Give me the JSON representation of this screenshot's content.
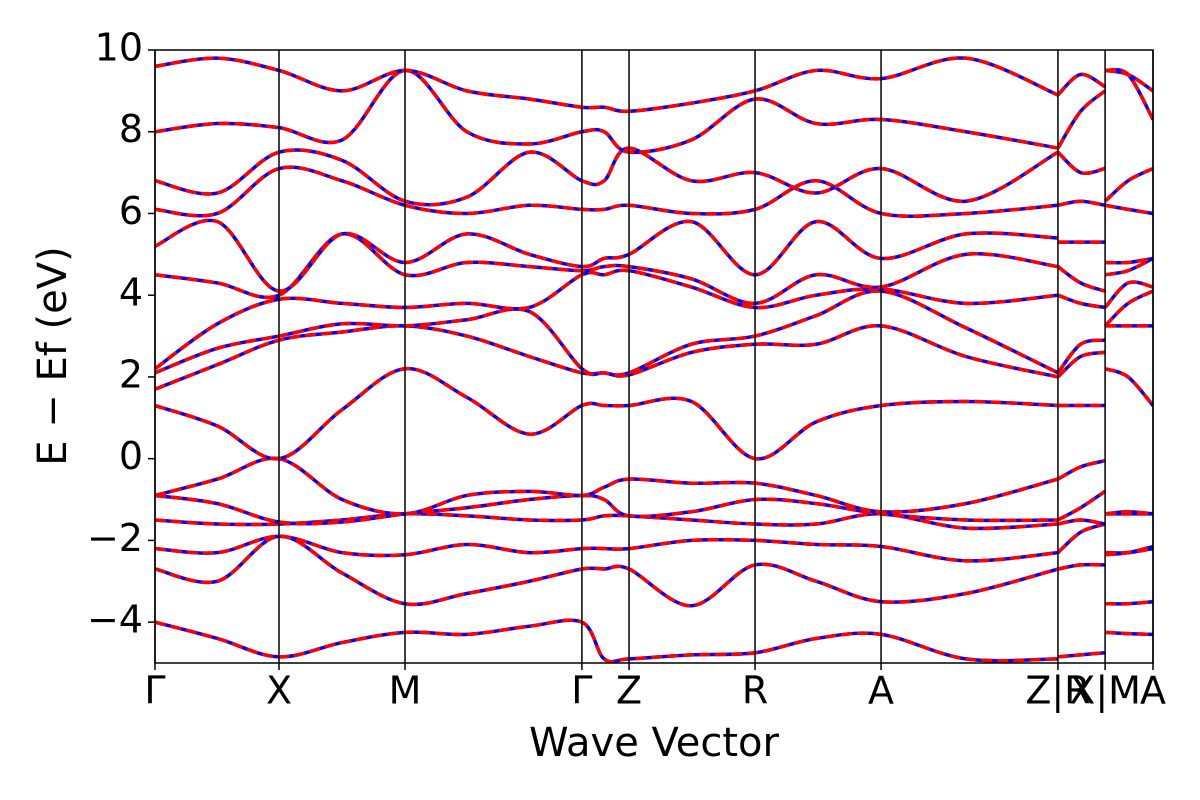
{
  "chart_data": {
    "type": "line",
    "xlabel": "Wave Vector",
    "ylabel": "E − Ef (eV)",
    "xlim": [
      0,
      4.0
    ],
    "ylim": [
      -5,
      10
    ],
    "yticks": [
      {
        "value": -4,
        "label": "−4"
      },
      {
        "value": -2,
        "label": "−2"
      },
      0,
      2,
      4,
      6,
      8,
      10
    ],
    "xticks": [
      {
        "value": 0,
        "label": "Γ"
      },
      {
        "value": 0.497,
        "label": "X"
      },
      {
        "value": 1.002,
        "label": "M"
      },
      {
        "value": 1.711,
        "label": "Γ"
      },
      {
        "value": 1.9,
        "label": "Z"
      },
      {
        "value": 2.405,
        "label": "R"
      },
      {
        "value": 2.91,
        "label": "A"
      },
      {
        "value": 3.619,
        "label": "Z|R"
      },
      {
        "value": 3.808,
        "label": "X|M"
      },
      {
        "value": 4.0,
        "label": "A"
      }
    ],
    "xtick_lines": true,
    "line_colors": [
      "#0000ff",
      "#ff0000"
    ],
    "x": [
      0,
      0.25,
      0.497,
      0.75,
      1.002,
      1.25,
      1.5,
      1.711,
      1.8,
      1.9,
      2.15,
      2.405,
      2.65,
      2.91,
      3.25,
      3.619,
      3.619,
      3.619,
      3.71,
      3.808,
      3.808,
      3.808,
      3.9,
      4.0
    ],
    "series": [
      {
        "values": [
          -4.0,
          -4.4,
          -4.85,
          -4.5,
          -4.25,
          -4.3,
          -4.1,
          -4.0,
          -4.9,
          -4.9,
          -4.8,
          -4.75,
          -4.4,
          -4.3,
          -4.9,
          -4.9,
          null,
          -4.85,
          -4.8,
          -4.75,
          null,
          -4.25,
          -4.28,
          -4.3
        ]
      },
      {
        "values": [
          -2.7,
          -3.0,
          -1.9,
          -2.8,
          -3.55,
          -3.3,
          -3.0,
          -2.7,
          -2.7,
          -2.7,
          -3.6,
          -2.6,
          -3.0,
          -3.5,
          -3.3,
          -2.7,
          null,
          -2.7,
          -2.6,
          -2.6,
          null,
          -3.55,
          -3.55,
          -3.5
        ]
      },
      {
        "values": [
          -2.2,
          -2.3,
          -1.9,
          -2.3,
          -2.35,
          -2.1,
          -2.3,
          -2.2,
          -2.2,
          -2.2,
          -2.0,
          -2.0,
          -2.1,
          -2.15,
          -2.5,
          -2.3,
          null,
          -2.3,
          -1.8,
          -1.6,
          null,
          -2.35,
          -2.3,
          -2.15
        ]
      },
      {
        "values": [
          -1.5,
          -1.6,
          -1.6,
          -1.5,
          -1.35,
          -1.4,
          -1.5,
          -1.5,
          -1.4,
          -1.4,
          -1.5,
          -1.6,
          -1.6,
          -1.35,
          -1.7,
          -1.6,
          null,
          -1.6,
          -1.5,
          -1.6,
          null,
          -1.35,
          -1.35,
          -1.35
        ]
      },
      {
        "values": [
          -0.9,
          -1.1,
          -1.55,
          -1.55,
          -1.35,
          -1.2,
          -1.0,
          -0.9,
          -1.0,
          -1.4,
          -1.3,
          -1.0,
          -1.1,
          -1.35,
          -1.5,
          -1.5,
          null,
          -1.5,
          -1.2,
          -0.8,
          null,
          -2.3,
          -2.3,
          -2.2
        ]
      },
      {
        "values": [
          -0.9,
          -0.5,
          0.0,
          -1.0,
          -1.35,
          -0.9,
          -0.8,
          -0.9,
          -0.7,
          -0.5,
          -0.6,
          -0.6,
          -0.9,
          -1.3,
          -1.1,
          -0.5,
          null,
          -0.5,
          -0.2,
          -0.05,
          null,
          -1.35,
          -1.3,
          -1.35
        ]
      },
      {
        "values": [
          1.3,
          0.8,
          0.0,
          1.2,
          2.2,
          1.5,
          0.6,
          1.3,
          1.3,
          1.3,
          1.4,
          0.0,
          0.9,
          1.3,
          1.4,
          1.3,
          null,
          1.3,
          1.3,
          1.3,
          null,
          2.2,
          2.0,
          1.3
        ]
      },
      {
        "values": [
          1.7,
          2.3,
          2.9,
          3.1,
          3.25,
          3.0,
          2.5,
          2.1,
          2.1,
          2.05,
          2.6,
          2.8,
          2.8,
          3.25,
          2.5,
          2.0,
          null,
          2.0,
          2.5,
          2.6,
          null,
          3.25,
          3.25,
          3.25
        ]
      },
      {
        "values": [
          2.1,
          2.7,
          3.0,
          3.3,
          3.25,
          3.4,
          3.6,
          2.2,
          2.1,
          2.1,
          2.8,
          3.0,
          3.5,
          4.1,
          3.2,
          2.1,
          null,
          2.1,
          2.8,
          2.9,
          null,
          3.25,
          3.8,
          4.1
        ]
      },
      {
        "values": [
          2.2,
          3.3,
          3.9,
          3.8,
          3.7,
          3.8,
          3.7,
          4.5,
          4.5,
          4.6,
          4.2,
          3.7,
          4.0,
          4.15,
          3.8,
          4.0,
          null,
          4.0,
          3.8,
          3.7,
          null,
          3.7,
          4.3,
          4.2
        ]
      },
      {
        "values": [
          4.5,
          4.3,
          4.0,
          5.5,
          4.5,
          4.8,
          4.7,
          4.6,
          4.7,
          4.7,
          4.4,
          3.8,
          4.5,
          4.2,
          5.0,
          4.7,
          null,
          4.7,
          4.3,
          4.1,
          null,
          4.5,
          4.6,
          4.9
        ]
      },
      {
        "values": [
          5.2,
          5.8,
          4.1,
          5.5,
          4.8,
          5.5,
          5.0,
          4.7,
          4.9,
          5.0,
          5.8,
          4.5,
          5.8,
          4.9,
          5.5,
          5.4,
          null,
          5.3,
          5.3,
          5.3,
          null,
          4.8,
          4.8,
          4.9
        ]
      },
      {
        "values": [
          6.1,
          6.0,
          7.1,
          6.8,
          6.2,
          6.0,
          6.2,
          6.1,
          6.1,
          6.2,
          6.0,
          6.1,
          6.8,
          6.0,
          6.0,
          6.2,
          null,
          6.2,
          6.3,
          6.2,
          null,
          6.2,
          6.1,
          6.0
        ]
      },
      {
        "values": [
          6.8,
          6.5,
          7.5,
          7.3,
          6.3,
          6.4,
          7.5,
          6.8,
          6.8,
          7.6,
          6.8,
          7.0,
          6.5,
          7.1,
          6.3,
          7.5,
          null,
          7.5,
          7.0,
          7.1,
          null,
          6.3,
          6.8,
          7.1
        ]
      },
      {
        "values": [
          8.0,
          8.2,
          8.1,
          7.8,
          9.5,
          8.0,
          7.7,
          8.0,
          8.0,
          7.5,
          7.8,
          8.8,
          8.2,
          8.3,
          8.0,
          7.6,
          null,
          7.6,
          8.5,
          9.0,
          null,
          9.5,
          9.4,
          8.3
        ]
      },
      {
        "values": [
          9.6,
          9.8,
          9.5,
          9.0,
          9.5,
          9.0,
          8.8,
          8.6,
          8.6,
          8.5,
          8.7,
          9.0,
          9.5,
          9.3,
          9.8,
          8.9,
          null,
          8.9,
          9.4,
          9.1,
          null,
          9.5,
          9.4,
          9.0
        ]
      }
    ]
  }
}
